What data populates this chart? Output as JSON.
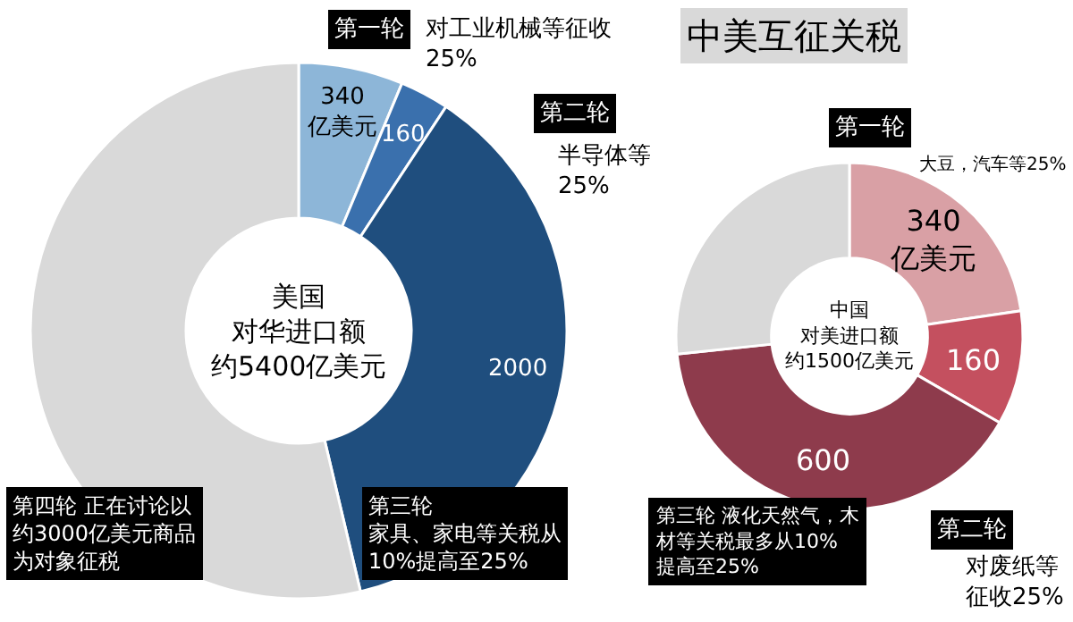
{
  "chart_data": [
    {
      "type": "donut",
      "categories": [
        null,
        null,
        null,
        null
      ],
      "values": [
        340,
        160,
        2000,
        2900
      ],
      "colors": [
        "#8db6d8",
        "#3a70ad",
        "#1f4e7e",
        "#d9d9d9"
      ],
      "value_labels": [
        "340\n亿美元",
        "160",
        "2000",
        null
      ],
      "annotations": [
        "第一轮",
        "对工业机械等征收25%",
        "第二轮",
        "半导体等25%",
        "美国对华进口额约5400亿美元",
        "第四轮 正在讨论以约3000亿美元商品为对象征税",
        "第三轮家具、家电等关税从10%提高至25%"
      ]
    },
    {
      "type": "donut",
      "title": "中美互征关税",
      "categories": [
        null,
        null,
        null,
        null
      ],
      "values": [
        340,
        160,
        600,
        400
      ],
      "colors": [
        "#d9a0a5",
        "#c4505f",
        "#8e3b4c",
        "#d9d9d9"
      ],
      "value_labels": [
        "340\n亿美元",
        "160",
        "600",
        null
      ],
      "annotations": [
        "第一轮",
        "大豆，汽车等25%",
        "中国对美进口额约1500亿美元",
        "第三轮 液化天然气，木材等关税最多从10%提高至25%",
        "第二轮",
        "对废纸等征收25%"
      ]
    }
  ]
}
